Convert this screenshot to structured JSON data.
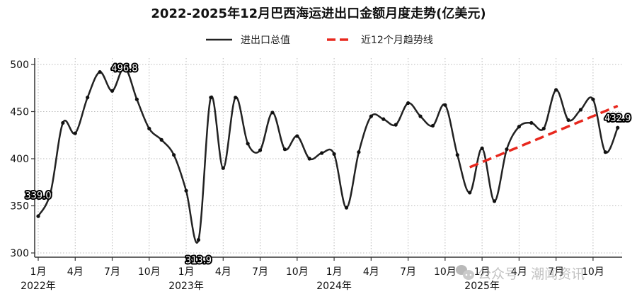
{
  "chart_data": {
    "type": "line",
    "title": "2022-2025年12月巴西海运进出口金额月度走势(亿美元)",
    "xlabel": "",
    "ylabel": "",
    "ylim": [
      300,
      500
    ],
    "yticks": [
      300,
      350,
      400,
      450,
      500
    ],
    "grid": true,
    "legend_position": "top-center",
    "x_tick_labels": [
      {
        "month_index": 0,
        "label": "1月",
        "year": "2022年"
      },
      {
        "month_index": 3,
        "label": "4月"
      },
      {
        "month_index": 6,
        "label": "7月"
      },
      {
        "month_index": 9,
        "label": "10月"
      },
      {
        "month_index": 12,
        "label": "1月",
        "year": "2023年"
      },
      {
        "month_index": 15,
        "label": "4月"
      },
      {
        "month_index": 18,
        "label": "7月"
      },
      {
        "month_index": 21,
        "label": "10月"
      },
      {
        "month_index": 24,
        "label": "1月",
        "year": "2024年"
      },
      {
        "month_index": 27,
        "label": "4月"
      },
      {
        "month_index": 30,
        "label": "7月"
      },
      {
        "month_index": 33,
        "label": "10月"
      },
      {
        "month_index": 36,
        "label": "1月",
        "year": "2025年"
      },
      {
        "month_index": 39,
        "label": "4月"
      },
      {
        "month_index": 42,
        "label": "7月"
      },
      {
        "month_index": 45,
        "label": "10月"
      }
    ],
    "x": [
      "2022-01",
      "2022-02",
      "2022-03",
      "2022-04",
      "2022-05",
      "2022-06",
      "2022-07",
      "2022-08",
      "2022-09",
      "2022-10",
      "2022-11",
      "2022-12",
      "2023-01",
      "2023-02",
      "2023-03",
      "2023-04",
      "2023-05",
      "2023-06",
      "2023-07",
      "2023-08",
      "2023-09",
      "2023-10",
      "2023-11",
      "2023-12",
      "2024-01",
      "2024-02",
      "2024-03",
      "2024-04",
      "2024-05",
      "2024-06",
      "2024-07",
      "2024-08",
      "2024-09",
      "2024-10",
      "2024-11",
      "2024-12",
      "2025-01",
      "2025-02",
      "2025-03",
      "2025-04",
      "2025-05",
      "2025-06",
      "2025-07",
      "2025-08",
      "2025-09",
      "2025-10",
      "2025-11",
      "2025-12"
    ],
    "series": [
      {
        "name": "进出口总值",
        "color": "#222222",
        "style": "solid",
        "values": [
          339.0,
          364,
          438,
          427,
          465,
          492,
          472,
          496.8,
          463,
          432,
          420,
          404,
          366,
          313.9,
          465,
          390,
          465,
          416,
          409,
          449,
          410,
          424,
          400,
          406,
          405,
          348,
          407,
          445,
          442,
          436,
          459,
          445,
          435,
          457,
          404,
          364,
          411,
          355,
          410,
          434,
          438,
          432,
          473,
          441,
          452,
          463,
          407,
          432.9
        ]
      },
      {
        "name": "近12个月趋势线",
        "color": "#e8281e",
        "style": "dashed",
        "x_range": [
          "2024-12",
          "2025-12"
        ],
        "values": [
          391,
          456
        ]
      }
    ],
    "annotations": [
      {
        "x": "2022-01",
        "text": "339.0"
      },
      {
        "x": "2022-08",
        "text": "496.8"
      },
      {
        "x": "2023-02",
        "text": "313.9"
      },
      {
        "x": "2025-12",
        "text": "432.9"
      }
    ]
  },
  "legend": {
    "items": [
      {
        "label": "进出口总值",
        "color": "#222222"
      },
      {
        "label": "近12个月趋势线",
        "color": "#e8281e"
      }
    ]
  },
  "watermark": {
    "text": "公众号 · 潮闻资讯"
  }
}
